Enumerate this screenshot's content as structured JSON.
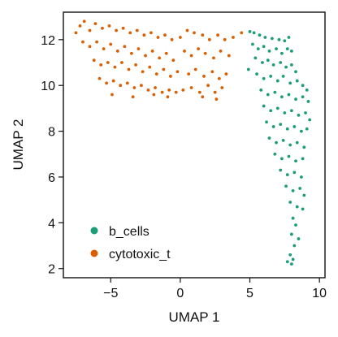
{
  "chart_data": {
    "type": "scatter",
    "xlabel": "UMAP 1",
    "ylabel": "UMAP 2",
    "xlim": [
      -8.4,
      10.4
    ],
    "ylim": [
      1.6,
      13.2
    ],
    "x_ticks": [
      -5,
      0,
      5,
      10
    ],
    "x_tick_labels": [
      "−5",
      "0",
      "5",
      "10"
    ],
    "y_ticks": [
      2,
      4,
      6,
      8,
      10,
      12
    ],
    "y_tick_labels": [
      "2",
      "4",
      "6",
      "8",
      "10",
      "12"
    ],
    "grid": false,
    "legend_position": "bottom-left",
    "series": [
      {
        "name": "b_cells",
        "color": "#1b9e77",
        "points": [
          [
            5.0,
            12.35
          ],
          [
            5.3,
            12.3
          ],
          [
            5.7,
            12.2
          ],
          [
            6.1,
            12.1
          ],
          [
            6.6,
            12.05
          ],
          [
            7.1,
            12.0
          ],
          [
            7.5,
            11.95
          ],
          [
            7.8,
            12.1
          ],
          [
            5.2,
            11.8
          ],
          [
            5.6,
            11.6
          ],
          [
            6.0,
            11.7
          ],
          [
            6.4,
            11.5
          ],
          [
            6.9,
            11.6
          ],
          [
            7.3,
            11.4
          ],
          [
            7.7,
            11.6
          ],
          [
            8.0,
            11.5
          ],
          [
            5.4,
            11.2
          ],
          [
            5.9,
            11.0
          ],
          [
            6.3,
            11.1
          ],
          [
            6.7,
            10.9
          ],
          [
            7.2,
            11.0
          ],
          [
            7.6,
            10.8
          ],
          [
            8.0,
            10.9
          ],
          [
            8.3,
            10.6
          ],
          [
            4.9,
            10.7
          ],
          [
            5.5,
            10.5
          ],
          [
            6.0,
            10.3
          ],
          [
            6.5,
            10.4
          ],
          [
            7.0,
            10.2
          ],
          [
            7.4,
            10.4
          ],
          [
            7.9,
            10.1
          ],
          [
            8.4,
            10.2
          ],
          [
            8.8,
            10.0
          ],
          [
            9.1,
            9.8
          ],
          [
            5.8,
            9.8
          ],
          [
            6.3,
            9.6
          ],
          [
            6.8,
            9.7
          ],
          [
            7.3,
            9.5
          ],
          [
            7.8,
            9.6
          ],
          [
            8.3,
            9.4
          ],
          [
            8.8,
            9.5
          ],
          [
            9.2,
            9.3
          ],
          [
            6.0,
            9.1
          ],
          [
            6.5,
            8.9
          ],
          [
            7.0,
            9.0
          ],
          [
            7.5,
            8.8
          ],
          [
            8.0,
            8.9
          ],
          [
            8.5,
            8.7
          ],
          [
            9.0,
            8.8
          ],
          [
            9.3,
            8.5
          ],
          [
            6.2,
            8.4
          ],
          [
            6.7,
            8.2
          ],
          [
            7.2,
            8.3
          ],
          [
            7.7,
            8.1
          ],
          [
            8.2,
            8.2
          ],
          [
            8.7,
            8.0
          ],
          [
            9.1,
            8.1
          ],
          [
            6.4,
            7.7
          ],
          [
            6.9,
            7.5
          ],
          [
            7.4,
            7.6
          ],
          [
            7.9,
            7.4
          ],
          [
            8.4,
            7.5
          ],
          [
            8.9,
            7.3
          ],
          [
            6.8,
            7.0
          ],
          [
            7.3,
            6.8
          ],
          [
            7.8,
            6.9
          ],
          [
            8.3,
            6.7
          ],
          [
            8.8,
            6.8
          ],
          [
            7.2,
            6.3
          ],
          [
            7.7,
            6.1
          ],
          [
            8.2,
            6.2
          ],
          [
            8.7,
            6.0
          ],
          [
            7.6,
            5.6
          ],
          [
            8.1,
            5.4
          ],
          [
            8.6,
            5.5
          ],
          [
            8.9,
            5.2
          ],
          [
            7.9,
            4.9
          ],
          [
            8.4,
            4.7
          ],
          [
            8.8,
            4.6
          ],
          [
            8.1,
            4.2
          ],
          [
            8.3,
            3.9
          ],
          [
            8.0,
            3.5
          ],
          [
            8.5,
            3.3
          ],
          [
            8.2,
            3.0
          ],
          [
            7.9,
            2.6
          ],
          [
            8.1,
            2.4
          ],
          [
            7.7,
            2.3
          ],
          [
            8.0,
            2.2
          ]
        ]
      },
      {
        "name": "cytotoxic_t",
        "color": "#d95f02",
        "points": [
          [
            -7.5,
            12.3
          ],
          [
            -7.2,
            12.6
          ],
          [
            -6.9,
            12.8
          ],
          [
            -6.5,
            12.4
          ],
          [
            -6.1,
            12.7
          ],
          [
            -5.6,
            12.5
          ],
          [
            -5.1,
            12.6
          ],
          [
            -4.6,
            12.4
          ],
          [
            -4.1,
            12.5
          ],
          [
            -3.6,
            12.3
          ],
          [
            -3.1,
            12.4
          ],
          [
            -2.6,
            12.2
          ],
          [
            -2.1,
            12.3
          ],
          [
            -1.6,
            12.1
          ],
          [
            -1.1,
            12.2
          ],
          [
            -0.6,
            12.0
          ],
          [
            0.0,
            12.1
          ],
          [
            0.5,
            12.4
          ],
          [
            1.0,
            12.3
          ],
          [
            1.6,
            12.2
          ],
          [
            2.1,
            12.0
          ],
          [
            2.7,
            12.2
          ],
          [
            3.2,
            12.0
          ],
          [
            3.8,
            12.1
          ],
          [
            4.4,
            12.3
          ],
          [
            -7.0,
            11.9
          ],
          [
            -6.5,
            11.7
          ],
          [
            -6.0,
            11.9
          ],
          [
            -5.5,
            11.6
          ],
          [
            -5.0,
            11.8
          ],
          [
            -4.5,
            11.5
          ],
          [
            -4.0,
            11.7
          ],
          [
            -3.5,
            11.4
          ],
          [
            -3.0,
            11.6
          ],
          [
            -2.5,
            11.3
          ],
          [
            -2.0,
            11.5
          ],
          [
            -1.5,
            11.2
          ],
          [
            -1.0,
            11.4
          ],
          [
            -0.5,
            11.1
          ],
          [
            0.3,
            11.5
          ],
          [
            0.8,
            11.3
          ],
          [
            1.3,
            11.6
          ],
          [
            1.8,
            11.4
          ],
          [
            2.4,
            11.2
          ],
          [
            2.9,
            11.5
          ],
          [
            3.5,
            11.3
          ],
          [
            -6.2,
            11.1
          ],
          [
            -5.7,
            10.9
          ],
          [
            -5.2,
            11.0
          ],
          [
            -4.7,
            10.8
          ],
          [
            -4.2,
            11.0
          ],
          [
            -3.7,
            10.7
          ],
          [
            -3.2,
            10.9
          ],
          [
            -2.7,
            10.6
          ],
          [
            -2.2,
            10.8
          ],
          [
            -1.7,
            10.5
          ],
          [
            -1.2,
            10.7
          ],
          [
            -0.7,
            10.4
          ],
          [
            -0.2,
            10.6
          ],
          [
            0.6,
            10.5
          ],
          [
            1.1,
            10.7
          ],
          [
            1.7,
            10.4
          ],
          [
            2.3,
            10.6
          ],
          [
            2.8,
            10.3
          ],
          [
            3.3,
            10.5
          ],
          [
            -5.8,
            10.3
          ],
          [
            -5.3,
            10.1
          ],
          [
            -4.8,
            10.2
          ],
          [
            -4.3,
            10.0
          ],
          [
            -3.8,
            10.1
          ],
          [
            -3.3,
            9.9
          ],
          [
            -2.8,
            10.0
          ],
          [
            -2.3,
            9.8
          ],
          [
            -1.8,
            9.9
          ],
          [
            -1.3,
            9.7
          ],
          [
            -0.8,
            9.8
          ],
          [
            -0.3,
            9.7
          ],
          [
            0.2,
            9.8
          ],
          [
            0.8,
            9.9
          ],
          [
            1.4,
            9.7
          ],
          [
            2.0,
            10.0
          ],
          [
            2.5,
            9.7
          ],
          [
            3.0,
            9.9
          ],
          [
            -4.9,
            9.6
          ],
          [
            -3.4,
            9.5
          ],
          [
            -1.9,
            9.6
          ],
          [
            -0.9,
            9.5
          ],
          [
            1.6,
            9.5
          ],
          [
            2.6,
            9.4
          ]
        ]
      }
    ]
  }
}
